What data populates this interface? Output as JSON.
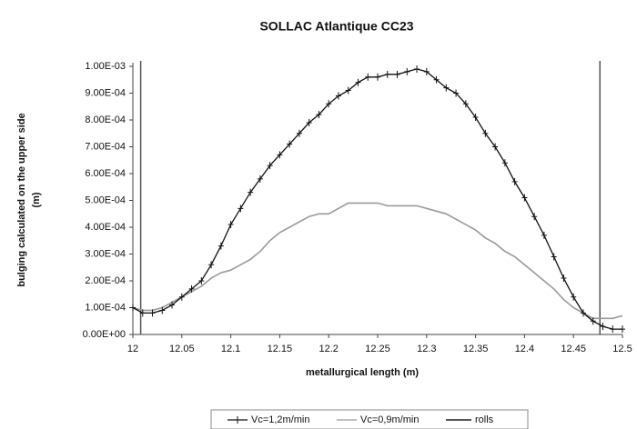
{
  "chart_data": {
    "type": "line",
    "title": "SOLLAC Atlantique CC23",
    "xlabel": "metallurgical length (m)",
    "ylabel": [
      "bulging calculated on the upper side",
      "(m)"
    ],
    "x": [
      12.0,
      12.01,
      12.02,
      12.03,
      12.04,
      12.05,
      12.06,
      12.07,
      12.08,
      12.09,
      12.1,
      12.11,
      12.12,
      12.13,
      12.14,
      12.15,
      12.16,
      12.17,
      12.18,
      12.19,
      12.2,
      12.21,
      12.22,
      12.23,
      12.24,
      12.25,
      12.26,
      12.27,
      12.28,
      12.29,
      12.3,
      12.31,
      12.32,
      12.33,
      12.34,
      12.35,
      12.36,
      12.37,
      12.38,
      12.39,
      12.4,
      12.41,
      12.42,
      12.43,
      12.44,
      12.45,
      12.46,
      12.47,
      12.48,
      12.49,
      12.5
    ],
    "series": [
      {
        "name": "Vc=1,2m/min",
        "color": "#111111",
        "marker": "+",
        "values": [
          0.0001,
          8e-05,
          8e-05,
          9e-05,
          0.00011,
          0.00014,
          0.00017,
          0.0002,
          0.00026,
          0.00033,
          0.00041,
          0.00047,
          0.00053,
          0.00058,
          0.00063,
          0.00067,
          0.00071,
          0.00075,
          0.00079,
          0.00082,
          0.00086,
          0.00089,
          0.00091,
          0.00094,
          0.00096,
          0.00096,
          0.00097,
          0.00097,
          0.00098,
          0.00099,
          0.00098,
          0.00095,
          0.00092,
          0.0009,
          0.00086,
          0.00081,
          0.00075,
          0.0007,
          0.00064,
          0.00057,
          0.00051,
          0.00044,
          0.00037,
          0.00029,
          0.00021,
          0.00014,
          8e-05,
          5e-05,
          3e-05,
          2e-05,
          2e-05
        ]
      },
      {
        "name": "Vc=0,9m/min",
        "color": "#9a9a9a",
        "values": [
          0.0001,
          9e-05,
          9e-05,
          0.0001,
          0.00012,
          0.00014,
          0.00016,
          0.00018,
          0.00021,
          0.00023,
          0.00024,
          0.00026,
          0.00028,
          0.00031,
          0.00035,
          0.00038,
          0.0004,
          0.00042,
          0.00044,
          0.00045,
          0.00045,
          0.00047,
          0.00049,
          0.00049,
          0.00049,
          0.00049,
          0.00048,
          0.00048,
          0.00048,
          0.00048,
          0.00047,
          0.00046,
          0.00045,
          0.00043,
          0.00041,
          0.00039,
          0.00036,
          0.00034,
          0.00031,
          0.00029,
          0.00026,
          0.00023,
          0.0002,
          0.00017,
          0.00013,
          0.0001,
          8e-05,
          6e-05,
          6e-05,
          6e-05,
          7e-05
        ]
      }
    ],
    "vlines": {
      "name": "rolls",
      "color": "#555555",
      "x": [
        12.008,
        12.477
      ]
    },
    "xlim": [
      12,
      12.5
    ],
    "xticks": [
      12,
      12.05,
      12.1,
      12.15,
      12.2,
      12.25,
      12.3,
      12.35,
      12.4,
      12.45,
      12.5
    ],
    "ylim": [
      0,
      0.001
    ],
    "yticks": [
      {
        "value": 0,
        "label": "0.00E+00"
      },
      {
        "value": 0.0001,
        "label": "1.00E-04"
      },
      {
        "value": 0.0002,
        "label": "2.00E-04"
      },
      {
        "value": 0.0003,
        "label": "3.00E-04"
      },
      {
        "value": 0.0004,
        "label": "4.00E-04"
      },
      {
        "value": 0.0005,
        "label": "5.00E-04"
      },
      {
        "value": 0.0006,
        "label": "6.00E-04"
      },
      {
        "value": 0.0007,
        "label": "7.00E-04"
      },
      {
        "value": 0.0008,
        "label": "8.00E-04"
      },
      {
        "value": 0.0009,
        "label": "9.00E-04"
      },
      {
        "value": 0.001,
        "label": "1.00E-03"
      }
    ],
    "legend": "bottom"
  }
}
